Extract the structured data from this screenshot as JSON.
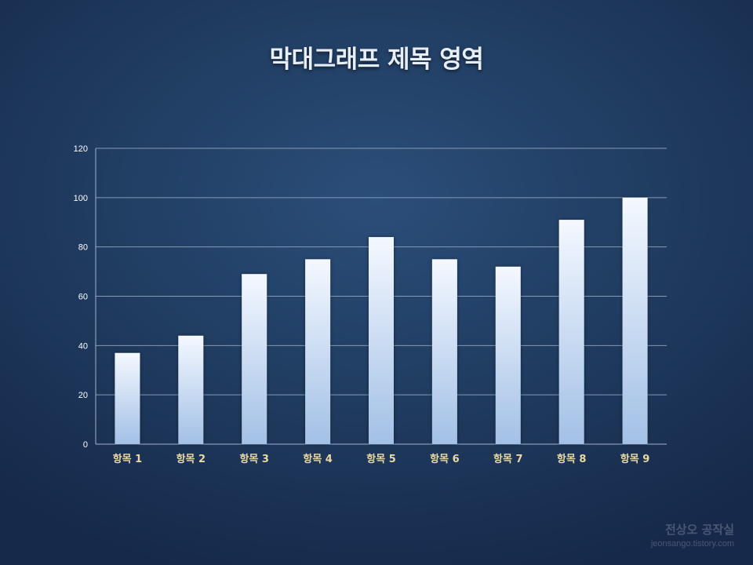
{
  "title": "막대그래프 제목 영역",
  "chart_data": {
    "type": "bar",
    "title": "막대그래프 제목 영역",
    "categories": [
      "항목 1",
      "항목 2",
      "항목 3",
      "항목 4",
      "항목 5",
      "항목 6",
      "항목 7",
      "항목 8",
      "항목 9"
    ],
    "values": [
      37,
      44,
      69,
      75,
      84,
      75,
      72,
      91,
      100
    ],
    "ylim": [
      0,
      120
    ],
    "yticks": [
      0,
      20,
      40,
      60,
      80,
      100,
      120
    ],
    "grid": true,
    "xlabel": "",
    "ylabel": "",
    "colors": {
      "bar_top": "#f4f8ff",
      "bar_bottom": "#a2c0e6",
      "grid": "#8799b2",
      "tick_text": "#ffffff",
      "category_text": "#ead9a6"
    }
  },
  "watermark": {
    "main": "전상오 공작실",
    "sub": "jeonsango.tistory.com"
  }
}
